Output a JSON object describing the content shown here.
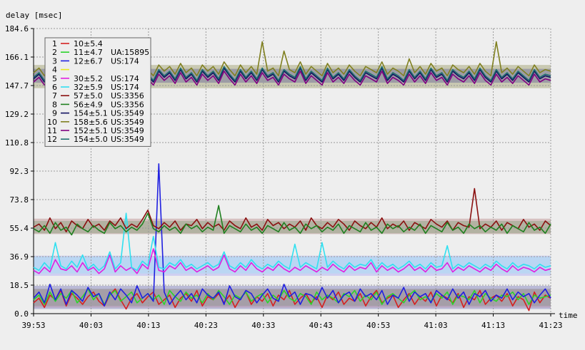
{
  "chart_data": {
    "type": "line",
    "ylabel": "delay [msec]",
    "xlabel": "time",
    "ylim": [
      0.0,
      184.6
    ],
    "yticks": [
      "0.0",
      "18.5",
      "36.9",
      "55.4",
      "73.8",
      "92.3",
      "110.8",
      "129.2",
      "147.7",
      "166.1",
      "184.6"
    ],
    "xticks": [
      "39:53",
      "40:03",
      "40:13",
      "40:23",
      "40:33",
      "40:43",
      "40:53",
      "41:03",
      "41:13",
      "41:23"
    ],
    "grid": true,
    "legend_position": "top-left",
    "bands": [
      {
        "low": 146.0,
        "high": 161.0,
        "color": "#5a5a00",
        "opacity": 0.25
      },
      {
        "low": 149.5,
        "high": 158.5,
        "color": "#1a1a80",
        "opacity": 0.25
      },
      {
        "low": 51.5,
        "high": 61.5,
        "color": "#7a1010",
        "opacity": 0.2
      },
      {
        "low": 52.0,
        "high": 60.0,
        "color": "#2a7a2a",
        "opacity": 0.2
      },
      {
        "low": 24.5,
        "high": 37.5,
        "color": "#5555ff",
        "opacity": 0.2
      },
      {
        "low": 26.0,
        "high": 37.0,
        "color": "#40ffff",
        "opacity": 0.15
      },
      {
        "low": 3.0,
        "high": 18.0,
        "color": "#1a1a90",
        "opacity": 0.25
      },
      {
        "low": 5.0,
        "high": 16.0,
        "color": "#208020",
        "opacity": 0.15
      },
      {
        "low": 4.0,
        "high": 16.0,
        "color": "#c02020",
        "opacity": 0.12
      }
    ],
    "series": [
      {
        "id": "1",
        "label": "10±5.4",
        "extra": "",
        "color": "#d42020",
        "values": [
          7,
          10,
          4,
          12,
          9,
          15,
          5,
          13,
          10,
          6,
          11,
          14,
          8,
          5,
          12,
          16,
          9,
          3,
          10,
          13,
          7,
          11,
          14,
          6,
          9,
          12,
          4,
          10,
          13,
          8,
          15,
          5,
          11,
          9,
          13,
          7,
          12,
          4,
          10,
          14,
          6,
          11,
          8,
          13,
          5,
          12,
          9,
          15,
          6,
          10,
          13,
          7,
          11,
          4,
          12,
          9,
          14,
          6,
          10,
          8,
          13,
          5,
          11,
          15,
          7,
          10,
          12,
          4,
          9,
          13,
          6,
          11,
          8,
          14,
          5,
          12,
          10,
          7,
          13,
          4,
          11,
          9,
          15,
          6,
          10,
          12,
          8,
          13,
          5,
          11,
          9,
          2,
          14,
          7,
          12,
          10
        ]
      },
      {
        "id": "2",
        "label": "11±4.7",
        "extra": "UA:15895",
        "color": "#2ad42a",
        "values": [
          9,
          12,
          6,
          14,
          8,
          13,
          10,
          15,
          7,
          11,
          16,
          9,
          13,
          6,
          12,
          15,
          8,
          11,
          14,
          7,
          10,
          13,
          9,
          12,
          6,
          15,
          11,
          8,
          14,
          10,
          12,
          7,
          13,
          9,
          15,
          11,
          6,
          12,
          10,
          14,
          8,
          11,
          13,
          7,
          12,
          9,
          15,
          10,
          8,
          13,
          11,
          6,
          14,
          9,
          12,
          10,
          7,
          13,
          11,
          15,
          8,
          12,
          9,
          14,
          6,
          11,
          13,
          10,
          7,
          12,
          15,
          9,
          11,
          8,
          13,
          10,
          14,
          6,
          12,
          11,
          9,
          15,
          7,
          13,
          10,
          8,
          12,
          11,
          14,
          9,
          13,
          6,
          12,
          10,
          11,
          12
        ]
      },
      {
        "id": "3",
        "label": "12±6.7",
        "extra": "US:174",
        "color": "#2020e0",
        "values": [
          10,
          14,
          7,
          19,
          9,
          16,
          6,
          15,
          12,
          8,
          17,
          11,
          13,
          5,
          14,
          9,
          16,
          12,
          7,
          18,
          10,
          13,
          8,
          97,
          14,
          6,
          11,
          15,
          9,
          13,
          7,
          16,
          12,
          10,
          14,
          6,
          18,
          11,
          9,
          15,
          13,
          7,
          12,
          16,
          10,
          8,
          19,
          11,
          14,
          6,
          13,
          12,
          9,
          17,
          10,
          15,
          7,
          12,
          14,
          8,
          16,
          11,
          13,
          9,
          15,
          6,
          12,
          10,
          17,
          8,
          14,
          11,
          13,
          7,
          15,
          12,
          9,
          16,
          10,
          14,
          6,
          13,
          11,
          15,
          8,
          12,
          10,
          16,
          9,
          14,
          11,
          13,
          7,
          12,
          16,
          10
        ]
      },
      {
        "id": "4",
        "label": "",
        "extra": "",
        "color": "#e8e820",
        "values": []
      },
      {
        "id": "5",
        "label": "30±5.2",
        "extra": "US:174",
        "color": "#e020e0",
        "values": [
          28,
          26,
          30,
          27,
          35,
          29,
          28,
          31,
          27,
          33,
          28,
          30,
          26,
          29,
          38,
          27,
          31,
          28,
          30,
          26,
          32,
          29,
          42,
          28,
          27,
          31,
          29,
          33,
          28,
          30,
          27,
          29,
          31,
          28,
          30,
          38,
          29,
          27,
          31,
          28,
          33,
          29,
          27,
          30,
          28,
          32,
          29,
          27,
          30,
          28,
          31,
          29,
          27,
          30,
          28,
          32,
          29,
          27,
          31,
          28,
          30,
          29,
          33,
          27,
          31,
          28,
          30,
          27,
          29,
          32,
          28,
          30,
          27,
          31,
          28,
          29,
          33,
          27,
          30,
          28,
          31,
          29,
          27,
          30,
          28,
          32,
          29,
          27,
          31,
          28,
          30,
          29,
          27,
          30,
          28,
          29
        ]
      },
      {
        "id": "6",
        "label": "32±5.9",
        "extra": "US:174",
        "color": "#30e0f0",
        "values": [
          30,
          28,
          33,
          29,
          46,
          31,
          29,
          34,
          30,
          38,
          29,
          32,
          28,
          31,
          40,
          29,
          33,
          65,
          30,
          28,
          34,
          31,
          50,
          30,
          29,
          33,
          31,
          35,
          30,
          32,
          29,
          31,
          33,
          30,
          32,
          40,
          31,
          29,
          33,
          30,
          35,
          31,
          29,
          32,
          30,
          34,
          31,
          29,
          45,
          30,
          33,
          31,
          29,
          46,
          30,
          34,
          31,
          29,
          33,
          30,
          32,
          31,
          35,
          29,
          33,
          30,
          32,
          29,
          31,
          34,
          30,
          32,
          29,
          33,
          30,
          31,
          44,
          29,
          32,
          30,
          33,
          31,
          29,
          32,
          30,
          34,
          31,
          29,
          33,
          30,
          32,
          31,
          29,
          32,
          30,
          31
        ]
      },
      {
        "id": "7",
        "label": "57±5.0",
        "extra": "US:3356",
        "color": "#8a1010",
        "values": [
          56,
          58,
          54,
          62,
          55,
          59,
          53,
          60,
          57,
          55,
          61,
          56,
          58,
          54,
          60,
          57,
          62,
          55,
          58,
          56,
          61,
          67,
          57,
          55,
          59,
          56,
          60,
          54,
          58,
          57,
          61,
          55,
          59,
          56,
          58,
          54,
          60,
          57,
          55,
          62,
          56,
          58,
          54,
          61,
          57,
          59,
          55,
          58,
          56,
          60,
          54,
          62,
          57,
          55,
          59,
          56,
          61,
          58,
          54,
          60,
          57,
          55,
          59,
          56,
          62,
          55,
          58,
          56,
          60,
          54,
          59,
          57,
          55,
          61,
          58,
          56,
          60,
          54,
          59,
          57,
          56,
          81,
          55,
          58,
          56,
          60,
          54,
          59,
          57,
          55,
          61,
          56,
          58,
          54,
          60,
          57
        ]
      },
      {
        "id": "8",
        "label": "56±4.9",
        "extra": "US:3356",
        "color": "#208020",
        "values": [
          55,
          53,
          57,
          52,
          59,
          54,
          56,
          51,
          58,
          55,
          53,
          57,
          54,
          52,
          59,
          55,
          57,
          53,
          56,
          54,
          58,
          65,
          55,
          53,
          57,
          54,
          56,
          52,
          58,
          55,
          57,
          53,
          56,
          54,
          70,
          52,
          57,
          55,
          53,
          58,
          54,
          56,
          52,
          57,
          55,
          53,
          59,
          54,
          56,
          52,
          58,
          55,
          57,
          53,
          56,
          54,
          58,
          52,
          57,
          55,
          53,
          59,
          54,
          56,
          52,
          58,
          55,
          57,
          53,
          56,
          54,
          58,
          52,
          57,
          55,
          53,
          59,
          54,
          56,
          52,
          58,
          55,
          57,
          53,
          56,
          54,
          58,
          52,
          57,
          55,
          53,
          59,
          54,
          56,
          52,
          58
        ]
      },
      {
        "id": "9",
        "label": "154±5.1",
        "extra": "US:3549",
        "color": "#101060",
        "values": [
          152,
          155,
          150,
          157,
          151,
          154,
          149,
          156,
          153,
          151,
          158,
          152,
          155,
          150,
          157,
          153,
          160,
          151,
          156,
          152,
          159,
          154,
          150,
          157,
          153,
          156,
          151,
          158,
          152,
          155,
          150,
          157,
          153,
          156,
          151,
          159,
          154,
          150,
          157,
          152,
          156,
          151,
          158,
          153,
          155,
          150,
          157,
          154,
          152,
          159,
          151,
          156,
          153,
          150,
          158,
          152,
          155,
          151,
          157,
          153,
          150,
          156,
          154,
          152,
          159,
          151,
          155,
          153,
          150,
          157,
          152,
          156,
          151,
          158,
          153,
          155,
          150,
          157,
          154,
          152,
          156,
          151,
          158,
          153,
          150,
          157,
          152,
          155,
          151,
          156,
          153,
          150,
          157,
          152,
          154,
          153
        ]
      },
      {
        "id": "10",
        "label": "158±5.6",
        "extra": "US:3549",
        "color": "#808020",
        "values": [
          156,
          159,
          154,
          161,
          155,
          158,
          153,
          160,
          157,
          155,
          162,
          156,
          159,
          154,
          161,
          157,
          163,
          155,
          160,
          156,
          162,
          158,
          154,
          161,
          157,
          160,
          155,
          162,
          156,
          159,
          154,
          161,
          157,
          160,
          155,
          163,
          158,
          154,
          161,
          156,
          160,
          155,
          176,
          157,
          159,
          154,
          170,
          158,
          156,
          163,
          155,
          160,
          157,
          154,
          162,
          156,
          159,
          155,
          161,
          157,
          154,
          160,
          158,
          156,
          163,
          155,
          159,
          157,
          154,
          165,
          156,
          160,
          155,
          162,
          157,
          159,
          154,
          161,
          158,
          156,
          160,
          155,
          162,
          157,
          154,
          176,
          156,
          159,
          155,
          160,
          157,
          154,
          161,
          156,
          158,
          157
        ]
      },
      {
        "id": "11",
        "label": "152±5.1",
        "extra": "US:3549",
        "color": "#800080",
        "values": [
          150,
          153,
          148,
          155,
          149,
          152,
          147,
          154,
          151,
          149,
          156,
          150,
          153,
          148,
          155,
          151,
          158,
          149,
          154,
          150,
          157,
          152,
          148,
          155,
          151,
          154,
          149,
          156,
          150,
          153,
          148,
          155,
          151,
          154,
          149,
          157,
          152,
          148,
          155,
          150,
          154,
          149,
          156,
          151,
          153,
          148,
          155,
          152,
          150,
          157,
          149,
          154,
          151,
          148,
          156,
          150,
          153,
          149,
          155,
          151,
          148,
          154,
          152,
          150,
          157,
          149,
          153,
          151,
          148,
          155,
          150,
          154,
          149,
          156,
          151,
          153,
          148,
          155,
          152,
          150,
          154,
          149,
          156,
          151,
          148,
          155,
          150,
          153,
          149,
          154,
          151,
          148,
          155,
          150,
          152,
          151
        ]
      },
      {
        "id": "12",
        "label": "154±5.0",
        "extra": "US:3549",
        "color": "#207070",
        "values": [
          153,
          156,
          151,
          158,
          152,
          155,
          150,
          157,
          154,
          152,
          159,
          153,
          156,
          151,
          158,
          154,
          161,
          152,
          157,
          153,
          160,
          155,
          151,
          158,
          154,
          157,
          152,
          159,
          153,
          156,
          151,
          158,
          154,
          157,
          152,
          160,
          155,
          151,
          158,
          153,
          157,
          152,
          159,
          154,
          156,
          151,
          158,
          155,
          153,
          160,
          152,
          157,
          154,
          151,
          159,
          153,
          156,
          152,
          158,
          154,
          151,
          157,
          155,
          153,
          160,
          152,
          156,
          154,
          151,
          158,
          153,
          157,
          152,
          159,
          154,
          156,
          151,
          158,
          155,
          153,
          157,
          152,
          159,
          154,
          151,
          158,
          153,
          156,
          152,
          157,
          154,
          151,
          158,
          153,
          155,
          154
        ]
      }
    ]
  }
}
